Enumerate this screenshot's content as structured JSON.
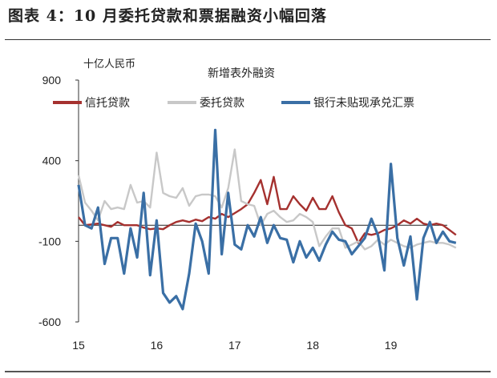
{
  "figure": {
    "title": "图表 4：10 月委托贷款和票据融资小幅回落"
  },
  "chart_data": {
    "type": "line",
    "title": "新增表外融资",
    "unit": "十亿人民币",
    "ylim": [
      -600,
      900
    ],
    "yticks": [
      900,
      400,
      -100,
      -600
    ],
    "xticks": [
      "15",
      "16",
      "17",
      "18",
      "19"
    ],
    "x_start": "2015-01",
    "grid": false,
    "legend_position": "top",
    "reference_line": 0,
    "series": [
      {
        "name": "信托贷款",
        "color": "#A5312F",
        "values": [
          50,
          0,
          5,
          10,
          0,
          -10,
          20,
          0,
          0,
          0,
          -15,
          -25,
          -20,
          -25,
          0,
          20,
          30,
          20,
          35,
          25,
          50,
          40,
          70,
          50,
          75,
          100,
          130,
          200,
          280,
          130,
          300,
          100,
          100,
          180,
          130,
          90,
          170,
          100,
          100,
          180,
          80,
          0,
          -20,
          -110,
          -50,
          -60,
          -50,
          -30,
          -20,
          0,
          30,
          10,
          40,
          10,
          0,
          10,
          0,
          -30,
          -60
        ]
      },
      {
        "name": "委托贷款",
        "color": "#C8C8C8",
        "values": [
          310,
          140,
          90,
          30,
          150,
          100,
          110,
          100,
          250,
          140,
          150,
          110,
          450,
          200,
          180,
          170,
          230,
          120,
          180,
          190,
          190,
          180,
          110,
          230,
          470,
          150,
          130,
          120,
          0,
          70,
          90,
          50,
          20,
          30,
          70,
          50,
          20,
          -130,
          -70,
          -20,
          -20,
          -140,
          -120,
          -100,
          -150,
          -130,
          -90,
          -120,
          -90,
          -110,
          -130,
          -140,
          -120,
          -110,
          -100,
          -110,
          -110,
          -120,
          -140
        ]
      },
      {
        "name": "银行未贴现承兑汇票",
        "color": "#3A6FA5",
        "values": [
          250,
          0,
          -20,
          110,
          -240,
          -80,
          -80,
          -300,
          -20,
          -200,
          200,
          -310,
          30,
          -420,
          -480,
          -440,
          -520,
          -300,
          10,
          -100,
          -300,
          590,
          -180,
          200,
          -120,
          -150,
          0,
          -70,
          50,
          -110,
          0,
          -80,
          -90,
          -230,
          -100,
          -200,
          -140,
          -220,
          -120,
          -40,
          -90,
          -100,
          -180,
          -130,
          -80,
          40,
          -60,
          -280,
          380,
          -80,
          -250,
          -70,
          -460,
          -80,
          20,
          -110,
          -40,
          -100,
          -110
        ]
      }
    ]
  }
}
